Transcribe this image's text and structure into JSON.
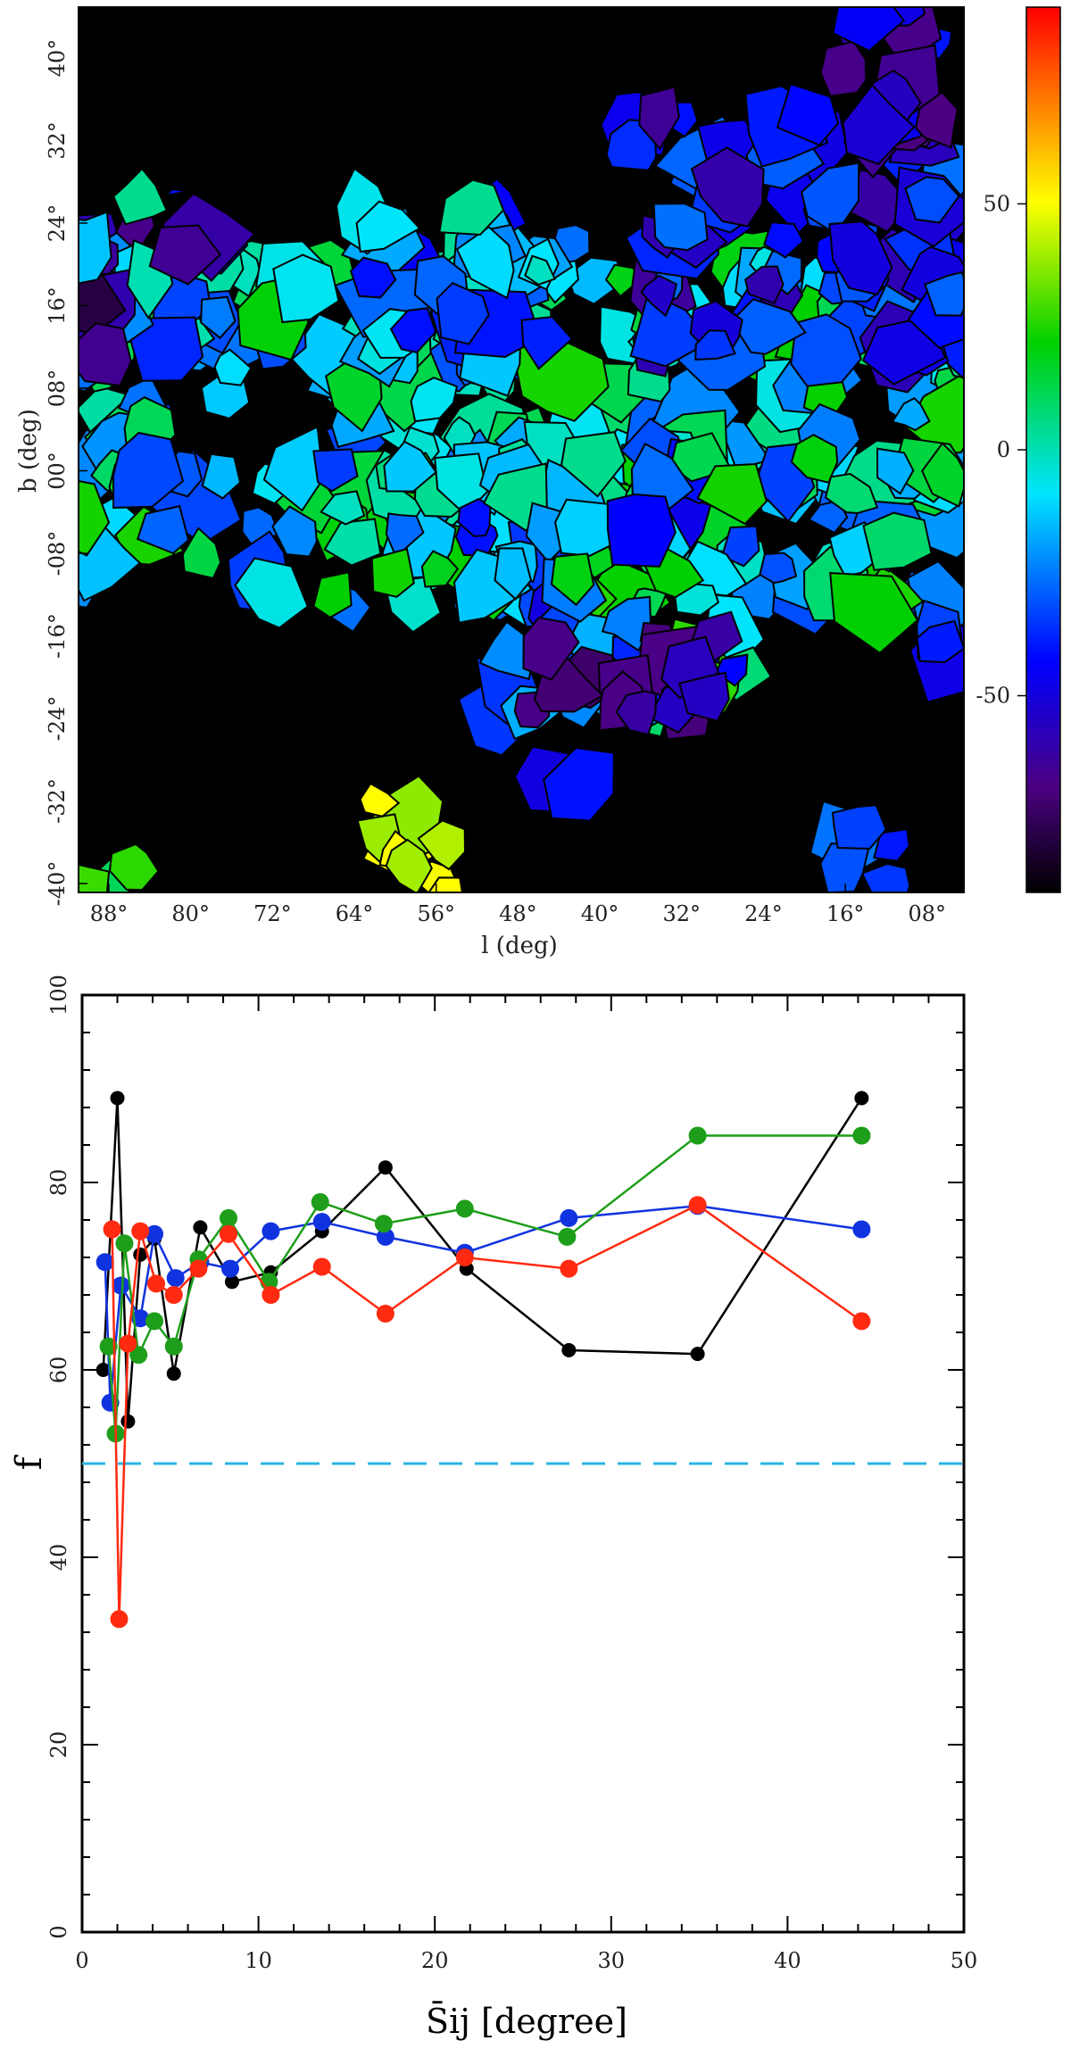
{
  "chart_data": [
    {
      "type": "heatmap",
      "xlabel": "l (deg)",
      "ylabel": "b (deg)",
      "x_ticks": [
        "88°",
        "80°",
        "72°",
        "64°",
        "56°",
        "48°",
        "40°",
        "32°",
        "24°",
        "16°",
        "08°"
      ],
      "y_ticks": [
        "40°",
        "32°",
        "24°",
        "16°",
        "08°",
        "00°",
        "-08°",
        "-16°",
        "-24°",
        "-32°",
        "-40°"
      ],
      "colorbar": {
        "ticks": [
          "50",
          "0",
          "-50"
        ],
        "range": [
          -90,
          90
        ],
        "colors": [
          "#000000",
          "#4b0082",
          "#0000ff",
          "#00e5ff",
          "#00d000",
          "#ffff00",
          "#ff8000",
          "#ff0000"
        ]
      },
      "background_color": "#000000",
      "note": "Voronoi-like patchwork of coloured cells, mostly -60 to +40, along a band near b=0°"
    },
    {
      "type": "line",
      "xlabel": "S̄ij [degree]",
      "ylabel": "f",
      "xlim": [
        0,
        50
      ],
      "ylim": [
        0,
        100
      ],
      "x_ticks": [
        "0",
        "10",
        "20",
        "30",
        "40",
        "50"
      ],
      "y_ticks": [
        "0",
        "20",
        "40",
        "60",
        "80",
        "100"
      ],
      "reference_line": {
        "y": 50,
        "color": "#29b6e0",
        "style": "dashed"
      },
      "series": [
        {
          "color": "#000000",
          "x": [
            1.2,
            2.0,
            2.6,
            3.3,
            4.1,
            5.2,
            6.7,
            8.5,
            10.7,
            13.6,
            17.2,
            21.8,
            27.6,
            34.9,
            44.2
          ],
          "y": [
            60.0,
            89.0,
            54.5,
            72.3,
            74.0,
            59.6,
            75.2,
            69.4,
            70.4,
            74.8,
            81.6,
            70.8,
            62.1,
            61.7,
            89.0
          ]
        },
        {
          "color": "#1033e0",
          "x": [
            1.3,
            1.6,
            2.2,
            3.3,
            4.1,
            5.3,
            6.7,
            8.4,
            10.7,
            13.6,
            17.2,
            21.7,
            27.6,
            34.9,
            44.2
          ],
          "y": [
            71.5,
            56.5,
            69.0,
            65.5,
            74.5,
            69.8,
            71.5,
            70.8,
            74.8,
            75.8,
            74.2,
            72.5,
            76.2,
            77.5,
            75.0
          ]
        },
        {
          "color": "#1e9e1a",
          "x": [
            1.5,
            1.9,
            2.4,
            3.2,
            4.1,
            5.2,
            6.6,
            8.3,
            10.6,
            13.5,
            17.1,
            21.7,
            27.5,
            34.9,
            44.2
          ],
          "y": [
            62.5,
            53.2,
            73.5,
            61.6,
            65.2,
            62.5,
            71.8,
            76.2,
            69.4,
            77.9,
            75.6,
            77.2,
            74.2,
            85.0,
            85.0
          ]
        },
        {
          "color": "#ff2a10",
          "x": [
            1.7,
            2.1,
            2.6,
            3.3,
            4.2,
            5.2,
            6.6,
            8.3,
            10.7,
            13.6,
            17.2,
            21.7,
            27.6,
            34.9,
            44.2
          ],
          "y": [
            75.0,
            33.4,
            62.8,
            74.8,
            69.2,
            68.0,
            70.8,
            74.5,
            68.0,
            71.0,
            66.0,
            72.0,
            70.8,
            77.6,
            65.2
          ]
        }
      ]
    }
  ]
}
